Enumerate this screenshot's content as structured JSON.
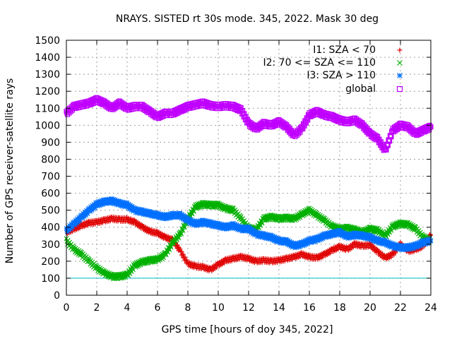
{
  "chart_data": {
    "type": "scatter",
    "title": "NRAYS. SISTED rt 30s mode. 345, 2022. Mask 30 deg",
    "xlabel": "GPS time [hours of doy 345, 2022]",
    "ylabel": "Number of GPS receiver-satellite rays",
    "xlim": [
      0,
      24
    ],
    "ylim": [
      0,
      1500
    ],
    "xticks": [
      "0",
      "2",
      "4",
      "6",
      "8",
      "10",
      "12",
      "14",
      "16",
      "18",
      "20",
      "22",
      "24"
    ],
    "yticks": [
      "0",
      "100",
      "200",
      "300",
      "400",
      "500",
      "600",
      "700",
      "800",
      "900",
      "1000",
      "1100",
      "1200",
      "1300",
      "1400",
      "1500"
    ],
    "grid": true,
    "legend_position": "top-right",
    "threshold_line": {
      "y": 100,
      "color": "#00c0c0"
    },
    "series": [
      {
        "name": "I1: SZA < 70",
        "marker": "+",
        "color": "#e00000",
        "x": [
          0,
          0.5,
          1,
          1.5,
          2,
          2.5,
          3,
          3.5,
          4,
          4.5,
          5,
          5.5,
          6,
          6.5,
          7,
          7.5,
          8,
          8.5,
          9,
          9.5,
          10,
          10.5,
          11,
          11.5,
          12,
          12.5,
          13,
          13.5,
          14,
          14.5,
          15,
          15.5,
          16,
          16.5,
          17,
          17.5,
          18,
          18.5,
          19,
          19.5,
          20,
          20.5,
          21,
          21.5,
          22,
          22.5,
          23,
          23.5,
          24
        ],
        "y": [
          370,
          390,
          410,
          425,
          430,
          440,
          450,
          445,
          445,
          430,
          400,
          375,
          365,
          340,
          325,
          260,
          185,
          170,
          165,
          150,
          180,
          205,
          215,
          225,
          215,
          200,
          205,
          200,
          205,
          215,
          225,
          240,
          225,
          220,
          240,
          265,
          285,
          270,
          300,
          290,
          295,
          255,
          220,
          240,
          300,
          260,
          270,
          290,
          355
        ]
      },
      {
        "name": "I2: 70 <= SZA <= 110",
        "marker": "x",
        "color": "#00b000",
        "x": [
          0,
          0.5,
          1,
          1.5,
          2,
          2.5,
          3,
          3.5,
          4,
          4.5,
          5,
          5.5,
          6,
          6.5,
          7,
          7.5,
          8,
          8.5,
          9,
          9.5,
          10,
          10.5,
          11,
          11.5,
          12,
          12.5,
          13,
          13.5,
          14,
          14.5,
          15,
          15.5,
          16,
          16.5,
          17,
          17.5,
          18,
          18.5,
          19,
          19.5,
          20,
          20.5,
          21,
          21.5,
          22,
          22.5,
          23,
          23.5,
          24
        ],
        "y": [
          320,
          270,
          240,
          200,
          160,
          130,
          110,
          110,
          120,
          175,
          195,
          205,
          210,
          240,
          310,
          360,
          450,
          520,
          535,
          530,
          530,
          510,
          500,
          450,
          395,
          385,
          450,
          460,
          450,
          455,
          450,
          475,
          500,
          470,
          440,
          405,
          390,
          395,
          385,
          370,
          390,
          380,
          350,
          405,
          420,
          415,
          390,
          340,
          320
        ]
      },
      {
        "name": "I3: SZA > 110",
        "marker": "*",
        "color": "#0070ff",
        "x": [
          0,
          0.5,
          1,
          1.5,
          2,
          2.5,
          3,
          3.5,
          4,
          4.5,
          5,
          5.5,
          6,
          6.5,
          7,
          7.5,
          8,
          8.5,
          9,
          9.5,
          10,
          10.5,
          11,
          11.5,
          12,
          12.5,
          13,
          13.5,
          14,
          14.5,
          15,
          15.5,
          16,
          16.5,
          17,
          17.5,
          18,
          18.5,
          19,
          19.5,
          20,
          20.5,
          21,
          21.5,
          22,
          22.5,
          23,
          23.5,
          24
        ],
        "y": [
          380,
          420,
          460,
          500,
          535,
          550,
          555,
          540,
          530,
          500,
          490,
          480,
          470,
          460,
          470,
          470,
          440,
          420,
          430,
          420,
          410,
          400,
          410,
          390,
          390,
          360,
          350,
          340,
          320,
          315,
          290,
          300,
          320,
          330,
          350,
          360,
          370,
          345,
          355,
          350,
          340,
          320,
          310,
          290,
          280,
          280,
          290,
          310,
          320
        ]
      },
      {
        "name": "global",
        "marker": "square",
        "color": "#c000ff",
        "x": [
          0,
          0.5,
          1,
          1.5,
          2,
          2.5,
          3,
          3.5,
          4,
          4.5,
          5,
          5.5,
          6,
          6.5,
          7,
          7.5,
          8,
          8.5,
          9,
          9.5,
          10,
          10.5,
          11,
          11.5,
          12,
          12.5,
          13,
          13.5,
          14,
          14.5,
          15,
          15.5,
          16,
          16.5,
          17,
          17.5,
          18,
          18.5,
          19,
          19.5,
          20,
          20.5,
          21,
          21.5,
          22,
          22.5,
          23,
          23.5,
          24
        ],
        "y": [
          1070,
          1110,
          1120,
          1130,
          1150,
          1130,
          1100,
          1130,
          1100,
          1110,
          1110,
          1080,
          1050,
          1070,
          1070,
          1090,
          1110,
          1120,
          1130,
          1115,
          1110,
          1115,
          1110,
          1090,
          1010,
          980,
          1010,
          1000,
          1020,
          990,
          940,
          980,
          1060,
          1080,
          1060,
          1050,
          1030,
          1020,
          1030,
          1000,
          950,
          920,
          850,
          970,
          1000,
          990,
          950,
          970,
          990
        ]
      }
    ]
  }
}
